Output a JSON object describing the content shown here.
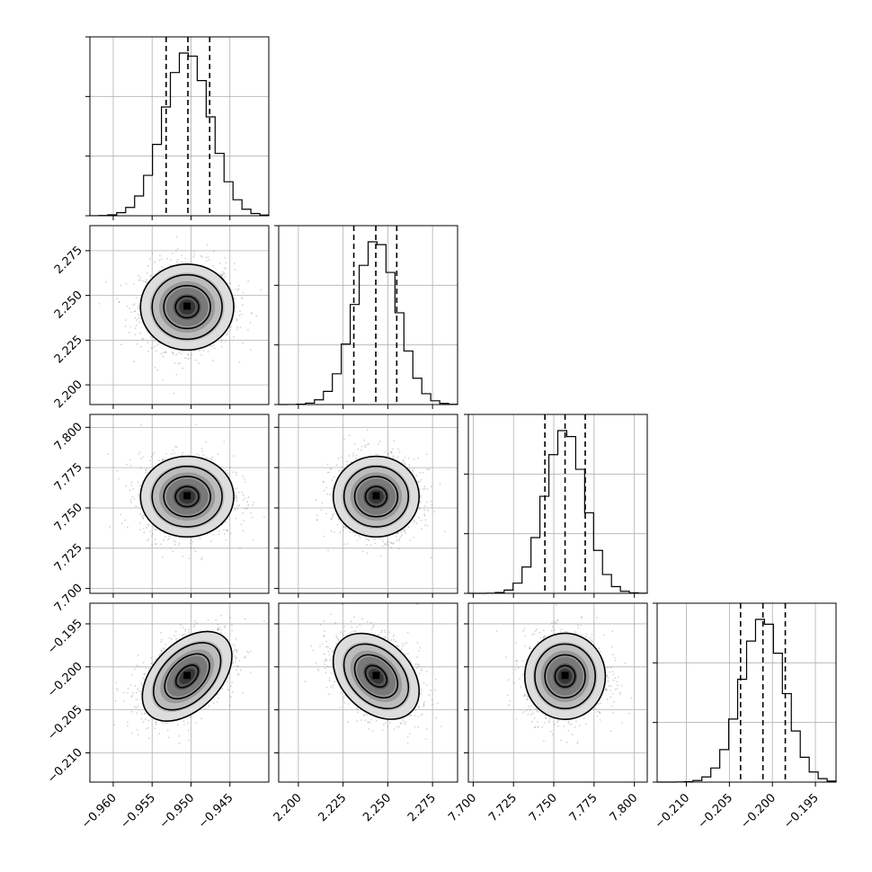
{
  "chart_data": {
    "type": "corner",
    "description_of_layout": "lower-triangular grid of 1D histograms and 2D density plots",
    "parameters": [
      {
        "index": 0,
        "range": [
          -0.963,
          -0.94
        ],
        "ticks": [
          -0.96,
          -0.955,
          -0.95,
          -0.945
        ],
        "tick_labels": [
          "−0.960",
          "−0.955",
          "−0.950",
          "−0.945"
        ],
        "mean": -0.9505,
        "sigma": 0.003,
        "quantiles": [
          -0.9532,
          -0.9504,
          -0.9476
        ]
      },
      {
        "index": 1,
        "range": [
          2.189,
          2.289
        ],
        "ticks": [
          2.2,
          2.225,
          2.25,
          2.275
        ],
        "tick_labels": [
          "2.200",
          "2.225",
          "2.250",
          "2.275"
        ],
        "mean": 2.2435,
        "sigma": 0.012,
        "quantiles": [
          2.231,
          2.2433,
          2.255
        ]
      },
      {
        "index": 2,
        "range": [
          7.697,
          7.808
        ],
        "ticks": [
          7.7,
          7.725,
          7.75,
          7.775,
          7.8
        ],
        "tick_labels": [
          "7.700",
          "7.725",
          "7.750",
          "7.775",
          "7.800"
        ],
        "mean": 7.757,
        "sigma": 0.0125,
        "quantiles": [
          7.7445,
          7.757,
          7.7695
        ]
      },
      {
        "index": 3,
        "range": [
          -0.2134,
          -0.1926
        ],
        "ticks": [
          -0.21,
          -0.205,
          -0.2,
          -0.195
        ],
        "tick_labels": [
          "−0.210",
          "−0.205",
          "−0.200",
          "−0.195"
        ],
        "mean": -0.2011,
        "sigma": 0.0025,
        "quantiles": [
          -0.2037,
          -0.2011,
          -0.1985
        ]
      }
    ],
    "correlations": [
      {
        "pair": [
          1,
          0
        ],
        "rho": 0.0
      },
      {
        "pair": [
          2,
          0
        ],
        "rho": 0.0
      },
      {
        "pair": [
          2,
          1
        ],
        "rho": 0.0
      },
      {
        "pair": [
          3,
          0
        ],
        "rho": 0.45
      },
      {
        "pair": [
          3,
          1
        ],
        "rho": -0.35
      },
      {
        "pair": [
          3,
          2
        ],
        "rho": 0.0
      }
    ],
    "histogram_bins": 20,
    "contour_levels_sigma": [
      0.5,
      1.0,
      1.5,
      2.0
    ],
    "scatter_color": "#808080",
    "fill_color": "#000000",
    "grid": true,
    "title": "",
    "xlabel": "",
    "ylabel": ""
  }
}
